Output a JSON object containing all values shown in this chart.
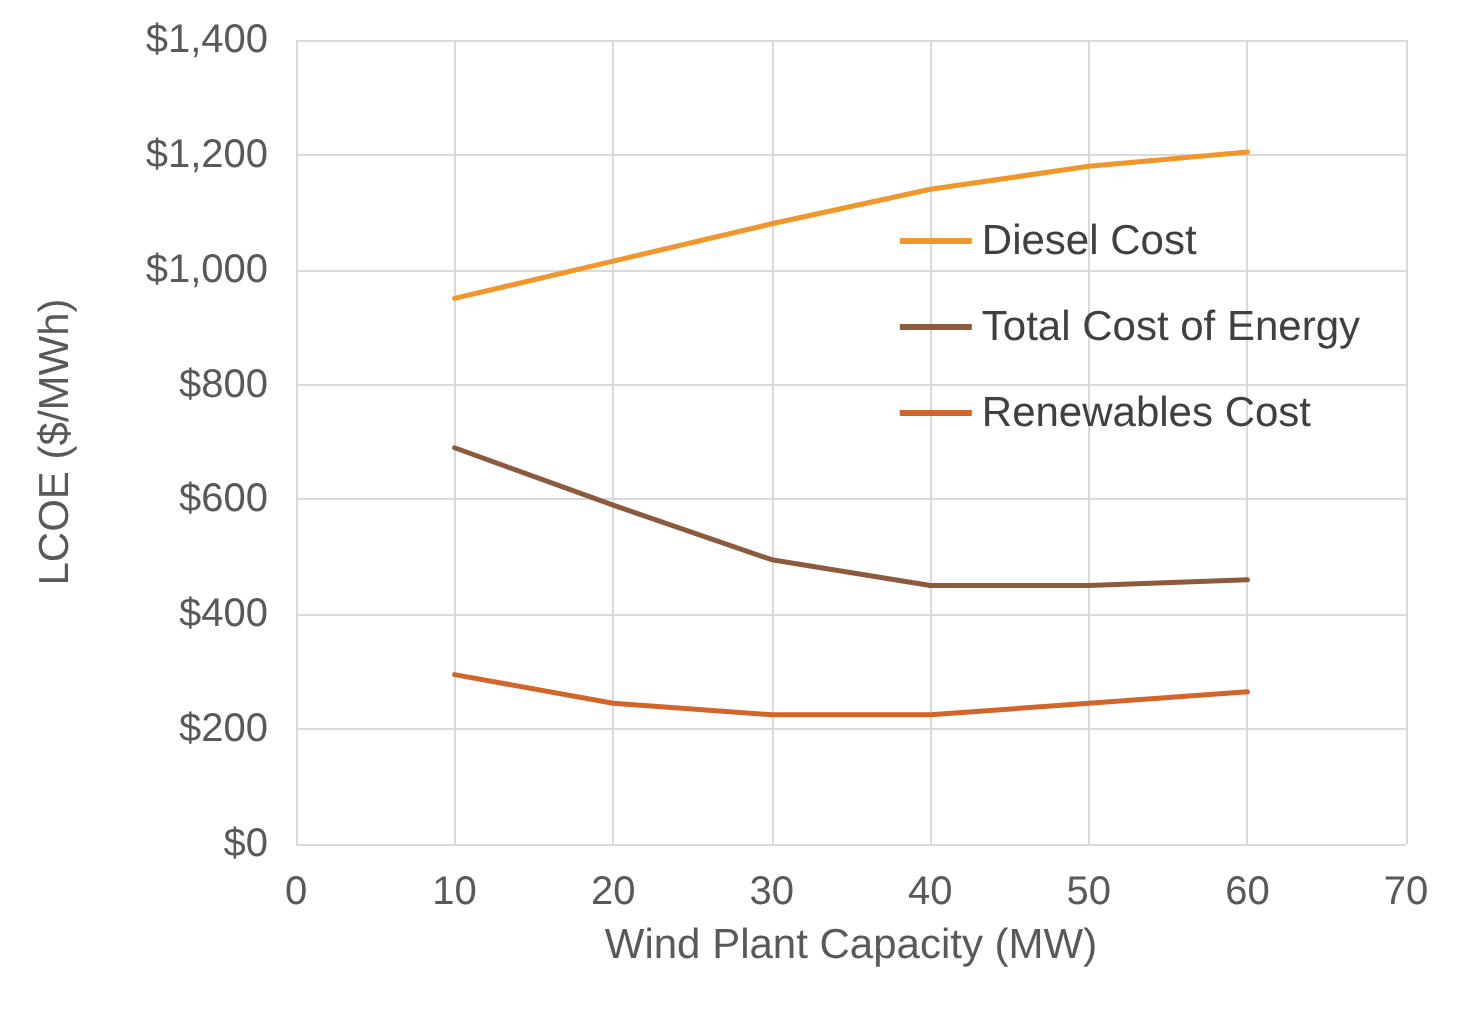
{
  "chart_data": {
    "type": "line",
    "xlabel": "Wind Plant Capacity (MW)",
    "ylabel": "LCOE ($/MWh)",
    "x": [
      10,
      20,
      30,
      40,
      50,
      60
    ],
    "series": [
      {
        "name": "Diesel Cost",
        "color": "#f0962a",
        "values": [
          950,
          1015,
          1080,
          1140,
          1180,
          1205
        ]
      },
      {
        "name": "Total Cost of Energy",
        "color": "#8c5a3c",
        "values": [
          690,
          590,
          495,
          450,
          450,
          460
        ]
      },
      {
        "name": "Renewables Cost",
        "color": "#d2652a",
        "values": [
          295,
          245,
          225,
          225,
          245,
          265
        ]
      }
    ],
    "xlim": [
      0,
      70
    ],
    "xticks": [
      0,
      10,
      20,
      30,
      40,
      50,
      60,
      70
    ],
    "ylim": [
      0,
      1400
    ],
    "yticks": [
      {
        "value": 0,
        "label": "$0"
      },
      {
        "value": 200,
        "label": "$200"
      },
      {
        "value": 400,
        "label": "$400"
      },
      {
        "value": 600,
        "label": "$600"
      },
      {
        "value": 800,
        "label": "$800"
      },
      {
        "value": 1000,
        "label": "$1,000"
      },
      {
        "value": 1200,
        "label": "$1,200"
      },
      {
        "value": 1400,
        "label": "$1,400"
      }
    ],
    "grid": true,
    "legend": "top right",
    "marker": "none",
    "line_style": "solid"
  }
}
